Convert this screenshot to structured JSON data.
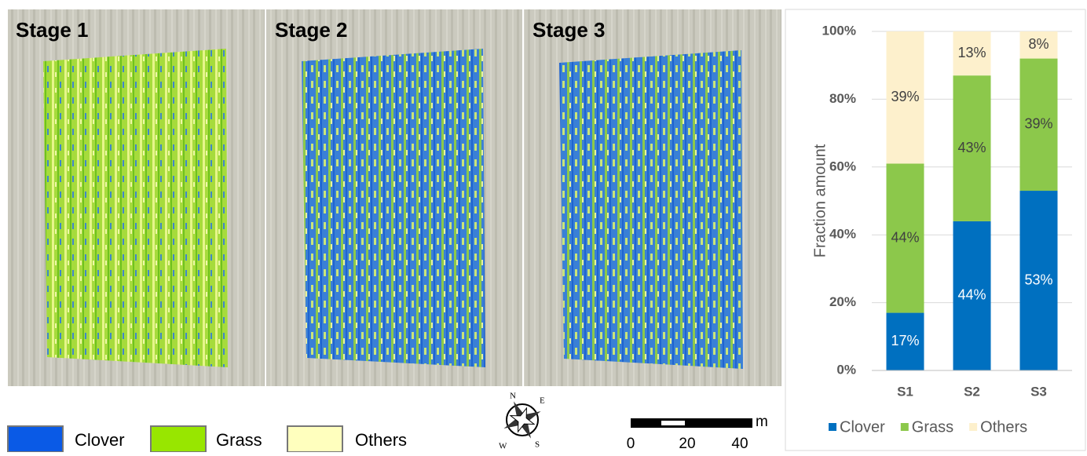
{
  "maps": {
    "labels": [
      "Stage 1",
      "Stage 2",
      "Stage 3"
    ],
    "legend": [
      {
        "name": "Clover",
        "color": "#0a5ae6"
      },
      {
        "name": "Grass",
        "color": "#98e600"
      },
      {
        "name": "Others",
        "color": "#ffffbe"
      }
    ],
    "compass": [
      "N",
      "E",
      "S",
      "W"
    ],
    "scale": {
      "ticks": [
        0,
        20,
        40
      ],
      "unit": "m"
    }
  },
  "chart_data": {
    "type": "bar",
    "stacked": true,
    "ylabel": "Fraction amount",
    "categories": [
      "S1",
      "S2",
      "S3"
    ],
    "series": [
      {
        "name": "Clover",
        "color": "#0070c0",
        "label_color": "#ffffff",
        "values": [
          17,
          44,
          53
        ],
        "value_labels": [
          "17%",
          "44%",
          "53%"
        ]
      },
      {
        "name": "Grass",
        "color": "#8cc84b",
        "label_color": "#404040",
        "values": [
          44,
          43,
          39
        ],
        "value_labels": [
          "44%",
          "43%",
          "39%"
        ]
      },
      {
        "name": "Others",
        "color": "#fdf0cc",
        "label_color": "#404040",
        "values": [
          39,
          13,
          8
        ],
        "value_labels": [
          "39%",
          "13%",
          "8%"
        ]
      }
    ],
    "ylim": [
      0,
      100
    ],
    "yticks": [
      {
        "value": 0,
        "label": "0%"
      },
      {
        "value": 20,
        "label": "20%"
      },
      {
        "value": 40,
        "label": "40%"
      },
      {
        "value": 60,
        "label": "60%"
      },
      {
        "value": 80,
        "label": "80%"
      },
      {
        "value": 100,
        "label": "100%"
      }
    ],
    "grid": true,
    "legend": "bottom"
  }
}
